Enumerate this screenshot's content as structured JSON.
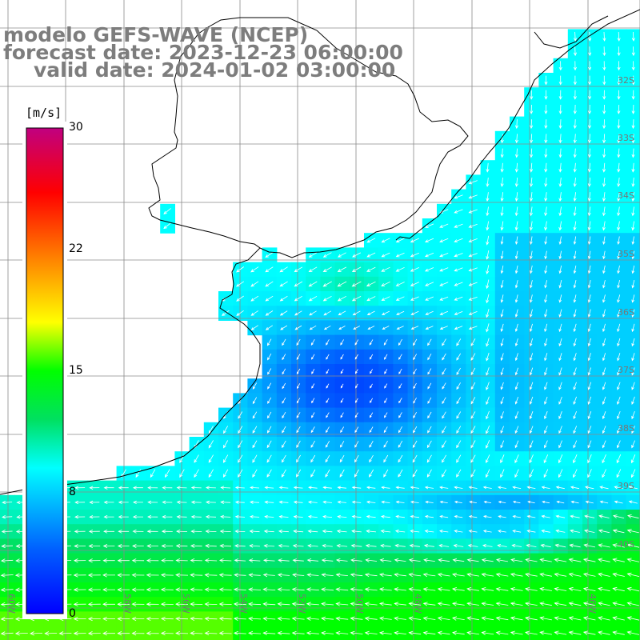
{
  "title": {
    "line1": "modelo GEFS-WAVE (NCEP)",
    "line2": "forecast date: 2023-12-23 06:00:00",
    "line3": "valid date: 2024-01-02 03:00:00"
  },
  "colorbar": {
    "unit": "[m/s]",
    "ticks": [
      "30",
      "22",
      "15",
      "8",
      "0"
    ],
    "values": [
      30,
      22,
      15,
      8,
      0
    ],
    "min": 0,
    "max": 30,
    "colors": [
      "#0000ff",
      "#00c8ff",
      "#00ffff",
      "#00ff00",
      "#ffff00",
      "#ff8000",
      "#ff0000",
      "#c00080"
    ]
  },
  "map": {
    "land_color": "#ffffff",
    "coast_color": "#000000",
    "grid_color": "#808080",
    "arrow_color": "#ffffff",
    "lat_labels": [
      "32S",
      "33S",
      "34S",
      "35S",
      "36S",
      "37S",
      "38S",
      "39S",
      "40S"
    ],
    "lon_labels": [
      "60W",
      "58W",
      "56W",
      "54W",
      "52W",
      "50W",
      "48W",
      "46W"
    ]
  }
}
